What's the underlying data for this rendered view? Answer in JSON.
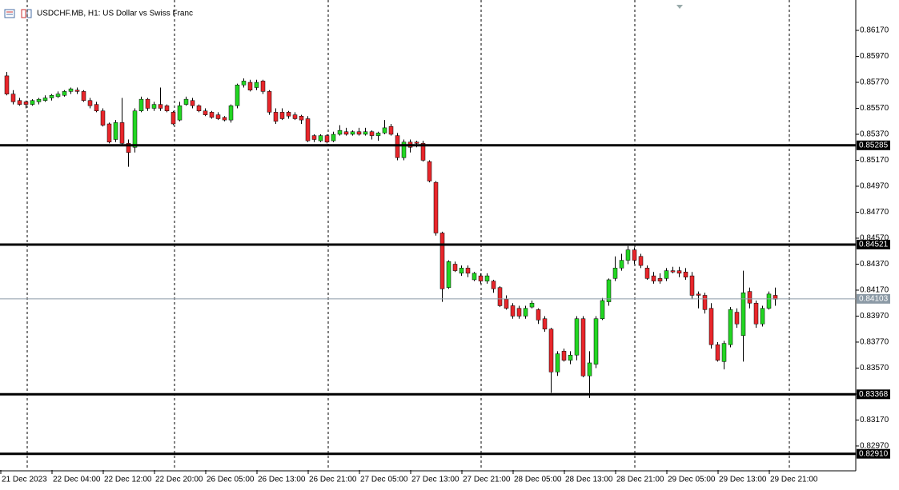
{
  "chart_data": {
    "type": "candlestick",
    "title": "USDCHF.MB, H1:  US Dollar vs Swiss Franc",
    "up_color": "#22d622",
    "down_color": "#e8262b",
    "open": [
      0.8582,
      0.8568,
      0.8563,
      0.8562,
      0.856,
      0.8562,
      0.8563,
      0.8565,
      0.8566,
      0.8567,
      0.857,
      0.8571,
      0.857,
      0.8563,
      0.856,
      0.8555,
      0.8545,
      0.8533,
      0.8546,
      0.853,
      0.8527,
      0.8555,
      0.8564,
      0.8557,
      0.856,
      0.8559,
      0.8554,
      0.8548,
      0.856,
      0.8563,
      0.8559,
      0.8555,
      0.8554,
      0.8552,
      0.855,
      0.8548,
      0.8559,
      0.8575,
      0.8577,
      0.8573,
      0.8578,
      0.857,
      0.8554,
      0.8554,
      0.8554,
      0.8552,
      0.8551,
      0.8549,
      0.8536,
      0.8532,
      0.8536,
      0.8532,
      0.8537,
      0.8539,
      0.8537,
      0.8539,
      0.8537,
      0.8539,
      0.8536,
      0.8538,
      0.8543,
      0.8536,
      0.8519,
      0.8531,
      0.8531,
      0.853,
      0.8516,
      0.85,
      0.8461,
      0.8419,
      0.8437,
      0.843,
      0.8434,
      0.8425,
      0.8428,
      0.8424,
      0.8424,
      0.8419,
      0.841,
      0.8405,
      0.8403,
      0.8397,
      0.8404,
      0.8402,
      0.8395,
      0.8387,
      0.8354,
      0.837,
      0.8363,
      0.8367,
      0.8395,
      0.8351,
      0.836,
      0.8395,
      0.8408,
      0.8426,
      0.8434,
      0.844,
      0.8448,
      0.8443,
      0.8434,
      0.8428,
      0.8426,
      0.8426,
      0.8432,
      0.8432,
      0.8431,
      0.8428,
      0.8414,
      0.8413,
      0.8403,
      0.8375,
      0.8362,
      0.8375,
      0.84,
      0.8382,
      0.8416,
      0.8407,
      0.8391,
      0.8403,
      0.8413
    ],
    "high": [
      0.8585,
      0.8571,
      0.8565,
      0.8563,
      0.8564,
      0.8565,
      0.8567,
      0.8568,
      0.857,
      0.8571,
      0.8573,
      0.8573,
      0.8571,
      0.8565,
      0.8562,
      0.8557,
      0.8546,
      0.8548,
      0.8565,
      0.8533,
      0.8557,
      0.8566,
      0.8565,
      0.8562,
      0.8573,
      0.856,
      0.8555,
      0.8562,
      0.8566,
      0.8565,
      0.856,
      0.8557,
      0.8555,
      0.8554,
      0.8551,
      0.856,
      0.8576,
      0.858,
      0.8579,
      0.8579,
      0.8579,
      0.8571,
      0.8557,
      0.8557,
      0.8555,
      0.8554,
      0.8552,
      0.8551,
      0.8537,
      0.8537,
      0.8537,
      0.8539,
      0.8544,
      0.8542,
      0.854,
      0.8542,
      0.8542,
      0.854,
      0.8539,
      0.8548,
      0.8545,
      0.8538,
      0.8533,
      0.8533,
      0.8532,
      0.8532,
      0.8517,
      0.8501,
      0.8462,
      0.844,
      0.8439,
      0.8436,
      0.8436,
      0.8431,
      0.843,
      0.843,
      0.8425,
      0.842,
      0.8413,
      0.8407,
      0.8405,
      0.8405,
      0.8409,
      0.8403,
      0.8397,
      0.8388,
      0.837,
      0.8372,
      0.837,
      0.8397,
      0.8397,
      0.837,
      0.8397,
      0.8411,
      0.8426,
      0.8443,
      0.8445,
      0.8451,
      0.845,
      0.8445,
      0.8436,
      0.8431,
      0.843,
      0.8434,
      0.8435,
      0.8435,
      0.8434,
      0.8431,
      0.8416,
      0.8415,
      0.8407,
      0.8377,
      0.8378,
      0.8404,
      0.8403,
      0.8432,
      0.8419,
      0.8409,
      0.8405,
      0.8416,
      0.8419
    ],
    "low": [
      0.8567,
      0.856,
      0.8559,
      0.8557,
      0.8559,
      0.856,
      0.8562,
      0.8563,
      0.8565,
      0.8566,
      0.8568,
      0.8568,
      0.8562,
      0.8557,
      0.8554,
      0.8543,
      0.853,
      0.8531,
      0.8528,
      0.8512,
      0.8523,
      0.8554,
      0.8555,
      0.8555,
      0.8555,
      0.8554,
      0.8544,
      0.8547,
      0.8559,
      0.8557,
      0.8554,
      0.8551,
      0.8549,
      0.8548,
      0.8547,
      0.8546,
      0.8557,
      0.8573,
      0.857,
      0.8571,
      0.8568,
      0.8552,
      0.8545,
      0.8548,
      0.8549,
      0.8548,
      0.8545,
      0.8531,
      0.8531,
      0.8531,
      0.853,
      0.8531,
      0.8536,
      0.8536,
      0.8536,
      0.8536,
      0.8536,
      0.8533,
      0.8532,
      0.8537,
      0.8536,
      0.8517,
      0.8517,
      0.8523,
      0.8527,
      0.8516,
      0.85,
      0.8459,
      0.8408,
      0.8418,
      0.8431,
      0.8428,
      0.8427,
      0.8424,
      0.8422,
      0.8422,
      0.8415,
      0.8404,
      0.8402,
      0.8395,
      0.8395,
      0.8395,
      0.8403,
      0.8391,
      0.8385,
      0.8338,
      0.8351,
      0.8362,
      0.836,
      0.8363,
      0.835,
      0.8334,
      0.8357,
      0.8394,
      0.8405,
      0.8424,
      0.8432,
      0.8437,
      0.8437,
      0.8434,
      0.8425,
      0.8422,
      0.8422,
      0.8424,
      0.843,
      0.8427,
      0.8425,
      0.841,
      0.8403,
      0.8399,
      0.8372,
      0.8362,
      0.8356,
      0.8373,
      0.8388,
      0.8362,
      0.8403,
      0.8388,
      0.8389,
      0.8402,
      0.8405
    ],
    "close": [
      0.8568,
      0.8562,
      0.856,
      0.856,
      0.8563,
      0.8564,
      0.8565,
      0.8567,
      0.8568,
      0.857,
      0.8572,
      0.857,
      0.8563,
      0.8559,
      0.8555,
      0.8544,
      0.8531,
      0.8546,
      0.853,
      0.8523,
      0.8555,
      0.8564,
      0.8557,
      0.856,
      0.8557,
      0.8555,
      0.8545,
      0.8559,
      0.8564,
      0.8559,
      0.8555,
      0.8552,
      0.855,
      0.8549,
      0.8548,
      0.8559,
      0.8575,
      0.8578,
      0.8571,
      0.8577,
      0.857,
      0.8554,
      0.8547,
      0.8549,
      0.8551,
      0.8549,
      0.8548,
      0.8532,
      0.8533,
      0.8536,
      0.8531,
      0.8537,
      0.854,
      0.8537,
      0.8539,
      0.8537,
      0.8539,
      0.8536,
      0.8538,
      0.8542,
      0.8537,
      0.8519,
      0.8531,
      0.8527,
      0.853,
      0.8517,
      0.8501,
      0.8461,
      0.8418,
      0.8439,
      0.8432,
      0.8434,
      0.843,
      0.843,
      0.8424,
      0.8428,
      0.8418,
      0.8405,
      0.8403,
      0.8397,
      0.8397,
      0.8403,
      0.8407,
      0.8394,
      0.8387,
      0.8354,
      0.8368,
      0.8363,
      0.8367,
      0.8395,
      0.8351,
      0.8361,
      0.8395,
      0.8409,
      0.8425,
      0.8434,
      0.844,
      0.8448,
      0.844,
      0.8436,
      0.8426,
      0.8424,
      0.8424,
      0.8432,
      0.8431,
      0.843,
      0.8427,
      0.8413,
      0.8413,
      0.8402,
      0.8375,
      0.8363,
      0.8376,
      0.8402,
      0.8391,
      0.8415,
      0.8407,
      0.8391,
      0.8403,
      0.8414,
      0.841
    ],
    "ylim": [
      0.82785,
      0.86404
    ],
    "yticks": [
      {
        "value": 0.8617,
        "label": "0.86170"
      },
      {
        "value": 0.8597,
        "label": "0.85970"
      },
      {
        "value": 0.8577,
        "label": "0.85770"
      },
      {
        "value": 0.8557,
        "label": "0.85570"
      },
      {
        "value": 0.8537,
        "label": "0.85370"
      },
      {
        "value": 0.8517,
        "label": "0.85170"
      },
      {
        "value": 0.8497,
        "label": "0.84970"
      },
      {
        "value": 0.8477,
        "label": "0.84770"
      },
      {
        "value": 0.8457,
        "label": "0.84570"
      },
      {
        "value": 0.8437,
        "label": "0.84370"
      },
      {
        "value": 0.8417,
        "label": "0.84170"
      },
      {
        "value": 0.8397,
        "label": "0.83970"
      },
      {
        "value": 0.8377,
        "label": "0.83770"
      },
      {
        "value": 0.8357,
        "label": "0.83570"
      },
      {
        "value": 0.8337,
        "label": "0.83370"
      },
      {
        "value": 0.8317,
        "label": "0.83170"
      },
      {
        "value": 0.8297,
        "label": "0.82970"
      }
    ],
    "x_labels": [
      "21 Dec 2023",
      "22 Dec 04:00",
      "22 Dec 12:00",
      "22 Dec 20:00",
      "26 Dec 05:00",
      "26 Dec 13:00",
      "26 Dec 21:00",
      "27 Dec 05:00",
      "27 Dec 13:00",
      "27 Dec 21:00",
      "28 Dec 05:00",
      "28 Dec 13:00",
      "28 Dec 21:00",
      "29 Dec 05:00",
      "29 Dec 13:00",
      "29 Dec 21:00"
    ],
    "levels": [
      {
        "value": 0.85285,
        "label": "0.85285"
      },
      {
        "value": 0.84521,
        "label": "0.84521"
      },
      {
        "value": 0.83368,
        "label": "0.83368"
      },
      {
        "value": 0.8291,
        "label": "0.82910"
      }
    ],
    "bid": {
      "value": 0.84103,
      "label": "0.84103"
    }
  }
}
